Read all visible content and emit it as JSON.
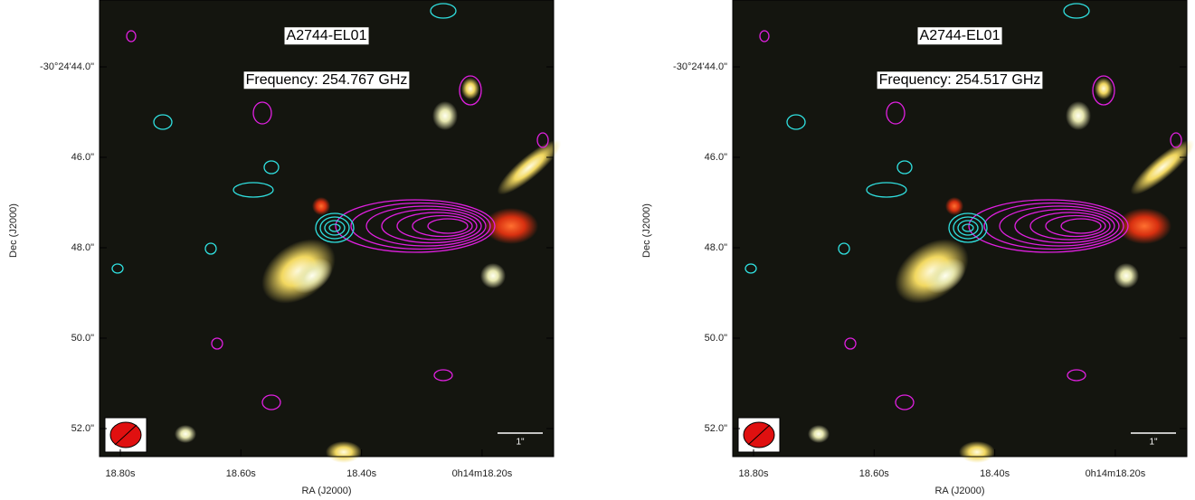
{
  "panels": [
    {
      "object": "A2744-EL01",
      "frequency": "Frequency: 254.767 GHz",
      "scale_bar": "1\"",
      "dec_ticks": [
        "-30°24'44.0\"",
        "46.0\"",
        "48.0\"",
        "50.0\"",
        "52.0\""
      ],
      "ra_ticks": [
        "18.80s",
        "18.60s",
        "18.40s",
        "0h14m18.20s"
      ],
      "x_label": "RA (J2000)",
      "y_label": "Dec (J2000)"
    },
    {
      "object": "A2744-EL01",
      "frequency": "Frequency: 254.517 GHz",
      "scale_bar": "1\"",
      "dec_ticks": [
        "-30°24'44.0\"",
        "46.0\"",
        "48.0\"",
        "50.0\"",
        "52.0\""
      ],
      "ra_ticks": [
        "18.80s",
        "18.60s",
        "18.40s",
        "0h14m18.20s"
      ],
      "x_label": "RA (J2000)",
      "y_label": "Dec (J2000)"
    }
  ]
}
